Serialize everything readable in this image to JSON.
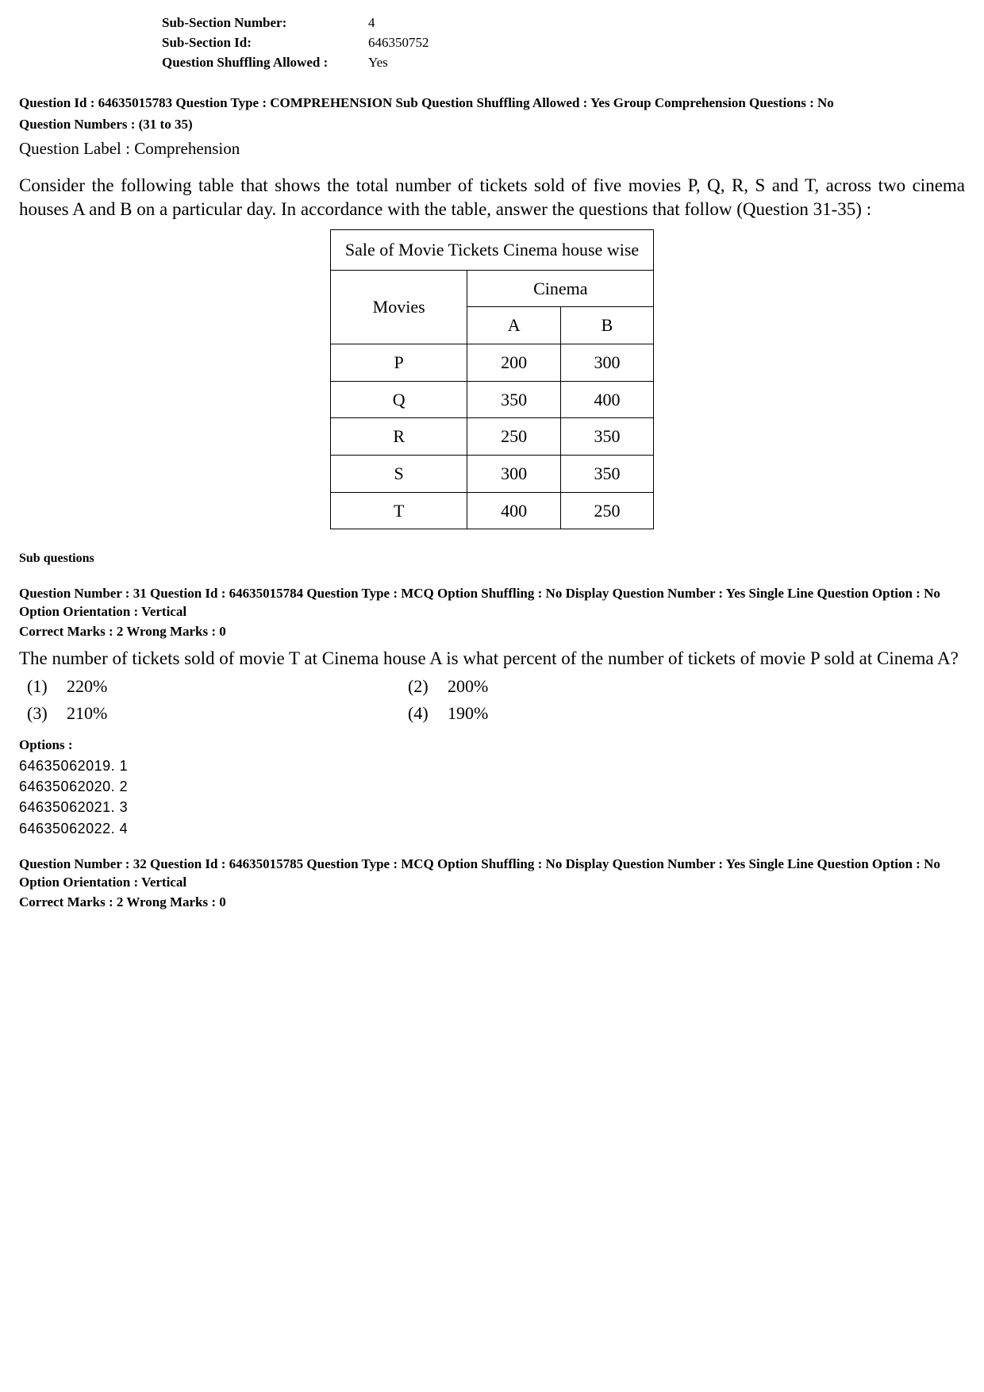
{
  "header": {
    "rows": [
      {
        "label": "Sub-Section Number:",
        "value": "4"
      },
      {
        "label": "Sub-Section Id:",
        "value": "646350752"
      },
      {
        "label": "Question Shuffling Allowed :",
        "value": "Yes"
      }
    ]
  },
  "comprehension": {
    "meta_line1": "Question Id : 64635015783  Question Type : COMPREHENSION  Sub Question Shuffling Allowed : Yes  Group Comprehension Questions : No",
    "meta_line2": "Question Numbers : (31 to 35)",
    "label": "Question Label : Comprehension",
    "passage": "Consider the following table that shows the total number of tickets sold of five movies P, Q, R, S and T, across two cinema houses A and B on a particular day. In accordance with the table, answer the questions that follow (Question 31-35) :"
  },
  "table": {
    "title": "Sale of Movie Tickets Cinema house wise",
    "row_header": "Movies",
    "group_header": "Cinema",
    "columns": [
      "A",
      "B"
    ],
    "rows": [
      {
        "movie": "P",
        "a": "200",
        "b": "300"
      },
      {
        "movie": "Q",
        "a": "350",
        "b": "400"
      },
      {
        "movie": "R",
        "a": "250",
        "b": "350"
      },
      {
        "movie": "S",
        "a": "300",
        "b": "350"
      },
      {
        "movie": "T",
        "a": "400",
        "b": "250"
      }
    ]
  },
  "subq_header": "Sub questions",
  "q31": {
    "meta": "Question Number : 31  Question Id : 64635015784  Question Type : MCQ  Option Shuffling : No  Display Question Number : Yes  Single Line Question Option : No  Option Orientation : Vertical",
    "marks": "Correct Marks : 2  Wrong Marks : 0",
    "text": "The number of tickets sold of movie T at Cinema house A is what percent of the number of tickets of movie P sold at Cinema A?",
    "choices": [
      {
        "n": "(1)",
        "v": "220%"
      },
      {
        "n": "(2)",
        "v": "200%"
      },
      {
        "n": "(3)",
        "v": "210%"
      },
      {
        "n": "(4)",
        "v": "190%"
      }
    ],
    "options_header": "Options :",
    "options": [
      "64635062019. 1",
      "64635062020. 2",
      "64635062021. 3",
      "64635062022. 4"
    ]
  },
  "q32": {
    "meta": "Question Number : 32  Question Id : 64635015785  Question Type : MCQ  Option Shuffling : No  Display Question Number : Yes  Single Line Question Option : No  Option Orientation : Vertical",
    "marks": "Correct Marks : 2  Wrong Marks : 0"
  }
}
